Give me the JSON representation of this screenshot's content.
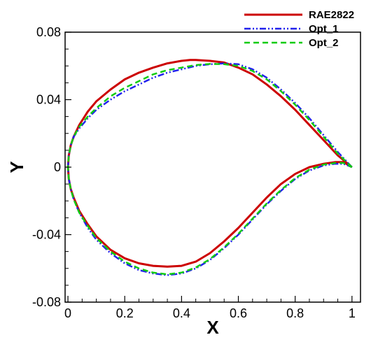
{
  "chart_data": {
    "type": "line",
    "xlabel": "X",
    "ylabel": "Y",
    "xlim": [
      -0.01,
      1.03
    ],
    "ylim": [
      -0.08,
      0.08
    ],
    "x_ticks": [
      0,
      0.2,
      0.4,
      0.6,
      0.8,
      1
    ],
    "x_tick_labels": [
      "0",
      "0.2",
      "0.4",
      "0.6",
      "0.8",
      "1"
    ],
    "y_ticks": [
      -0.08,
      -0.04,
      0,
      0.04,
      0.08
    ],
    "y_tick_labels": [
      "-0.08",
      "-0.04",
      "0",
      "0.04",
      "0.08"
    ],
    "grid": false,
    "legend_position": "top-right",
    "series": [
      {
        "name": "RAE2822",
        "color": "#cc0000",
        "style": "solid",
        "x": [
          1.0,
          0.95,
          0.9,
          0.85,
          0.8,
          0.75,
          0.7,
          0.65,
          0.6,
          0.55,
          0.5,
          0.45,
          0.43,
          0.4,
          0.35,
          0.3,
          0.25,
          0.2,
          0.15,
          0.1,
          0.07,
          0.04,
          0.02,
          0.01,
          0.003,
          0.0,
          0.003,
          0.01,
          0.02,
          0.04,
          0.07,
          0.1,
          0.15,
          0.2,
          0.25,
          0.3,
          0.35,
          0.4,
          0.45,
          0.5,
          0.55,
          0.6,
          0.65,
          0.7,
          0.75,
          0.8,
          0.85,
          0.9,
          0.94,
          0.97,
          1.0
        ],
        "y": [
          0.0,
          0.007,
          0.016,
          0.025,
          0.034,
          0.042,
          0.049,
          0.055,
          0.059,
          0.062,
          0.063,
          0.0635,
          0.0635,
          0.063,
          0.0615,
          0.059,
          0.056,
          0.052,
          0.046,
          0.039,
          0.033,
          0.025,
          0.018,
          0.013,
          0.007,
          0.0,
          -0.007,
          -0.013,
          -0.018,
          -0.026,
          -0.034,
          -0.041,
          -0.049,
          -0.054,
          -0.057,
          -0.0585,
          -0.059,
          -0.0585,
          -0.056,
          -0.051,
          -0.044,
          -0.036,
          -0.027,
          -0.018,
          -0.01,
          -0.004,
          0.0,
          0.002,
          0.003,
          0.003,
          0.0
        ]
      },
      {
        "name": "Opt_1",
        "color": "#2222ee",
        "style": "dashdotdot",
        "x": [
          1.0,
          0.95,
          0.9,
          0.85,
          0.8,
          0.75,
          0.7,
          0.65,
          0.6,
          0.55,
          0.5,
          0.45,
          0.4,
          0.35,
          0.3,
          0.25,
          0.2,
          0.15,
          0.1,
          0.07,
          0.04,
          0.02,
          0.01,
          0.003,
          0.0,
          0.003,
          0.01,
          0.02,
          0.04,
          0.07,
          0.1,
          0.15,
          0.2,
          0.25,
          0.3,
          0.35,
          0.4,
          0.45,
          0.5,
          0.55,
          0.6,
          0.65,
          0.7,
          0.75,
          0.8,
          0.85,
          0.9,
          0.94,
          0.97,
          1.0
        ],
        "y": [
          0.0,
          0.009,
          0.019,
          0.029,
          0.038,
          0.046,
          0.053,
          0.058,
          0.061,
          0.0615,
          0.061,
          0.06,
          0.058,
          0.056,
          0.053,
          0.049,
          0.045,
          0.04,
          0.034,
          0.029,
          0.023,
          0.018,
          0.013,
          0.007,
          0.0,
          -0.007,
          -0.013,
          -0.019,
          -0.027,
          -0.036,
          -0.043,
          -0.051,
          -0.057,
          -0.061,
          -0.063,
          -0.064,
          -0.063,
          -0.06,
          -0.055,
          -0.048,
          -0.04,
          -0.031,
          -0.022,
          -0.014,
          -0.007,
          -0.002,
          0.001,
          0.002,
          0.002,
          0.0
        ]
      },
      {
        "name": "Opt_2",
        "color": "#11cc11",
        "style": "dashed",
        "x": [
          1.0,
          0.95,
          0.9,
          0.85,
          0.8,
          0.75,
          0.7,
          0.65,
          0.6,
          0.55,
          0.5,
          0.45,
          0.4,
          0.35,
          0.3,
          0.25,
          0.2,
          0.15,
          0.1,
          0.07,
          0.04,
          0.02,
          0.01,
          0.003,
          0.0,
          0.003,
          0.01,
          0.02,
          0.04,
          0.07,
          0.1,
          0.15,
          0.2,
          0.25,
          0.3,
          0.35,
          0.4,
          0.45,
          0.5,
          0.55,
          0.6,
          0.65,
          0.7,
          0.75,
          0.8,
          0.85,
          0.9,
          0.94,
          0.97,
          1.0
        ],
        "y": [
          0.0,
          0.008,
          0.018,
          0.028,
          0.037,
          0.045,
          0.052,
          0.057,
          0.06,
          0.061,
          0.0612,
          0.0605,
          0.059,
          0.0575,
          0.055,
          0.051,
          0.047,
          0.042,
          0.035,
          0.03,
          0.024,
          0.018,
          0.013,
          0.007,
          0.0,
          -0.007,
          -0.013,
          -0.019,
          -0.027,
          -0.035,
          -0.042,
          -0.05,
          -0.056,
          -0.06,
          -0.0625,
          -0.0635,
          -0.0625,
          -0.0595,
          -0.0545,
          -0.0475,
          -0.0395,
          -0.0305,
          -0.0215,
          -0.0135,
          -0.0065,
          -0.0015,
          0.0015,
          0.0025,
          0.0025,
          0.0
        ]
      }
    ]
  }
}
